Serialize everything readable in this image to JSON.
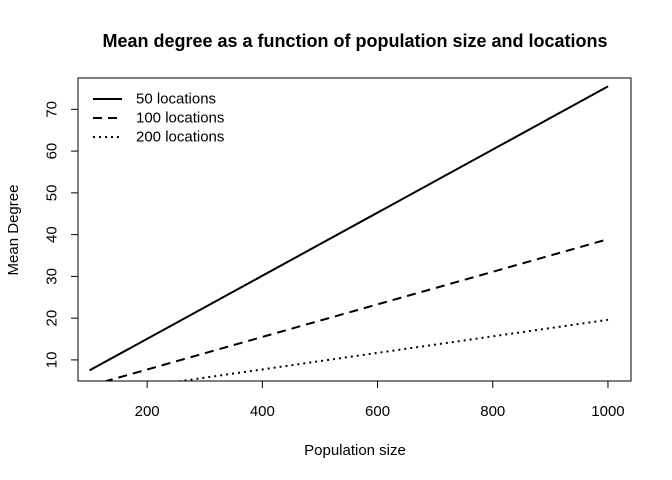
{
  "chart_data": {
    "type": "line",
    "title": "Mean degree as a function of population size and locations",
    "xlabel": "Population size",
    "ylabel": "Mean Degree",
    "xlim": [
      80,
      1040
    ],
    "ylim": [
      4.95,
      77.5
    ],
    "xticks": [
      200,
      400,
      600,
      800,
      1000
    ],
    "yticks": [
      10,
      20,
      30,
      40,
      50,
      60,
      70
    ],
    "grid": false,
    "legend_position": "top-left",
    "series": [
      {
        "name": "50 locations",
        "line_style": "solid",
        "x": [
          100,
          1000
        ],
        "y": [
          7.5,
          75.5
        ]
      },
      {
        "name": "100 locations",
        "line_style": "dashed",
        "x": [
          100,
          1000
        ],
        "y": [
          3.8,
          38.9
        ]
      },
      {
        "name": "200 locations",
        "line_style": "dotted",
        "x": [
          100,
          1000
        ],
        "y": [
          1.8,
          19.6
        ]
      }
    ]
  }
}
